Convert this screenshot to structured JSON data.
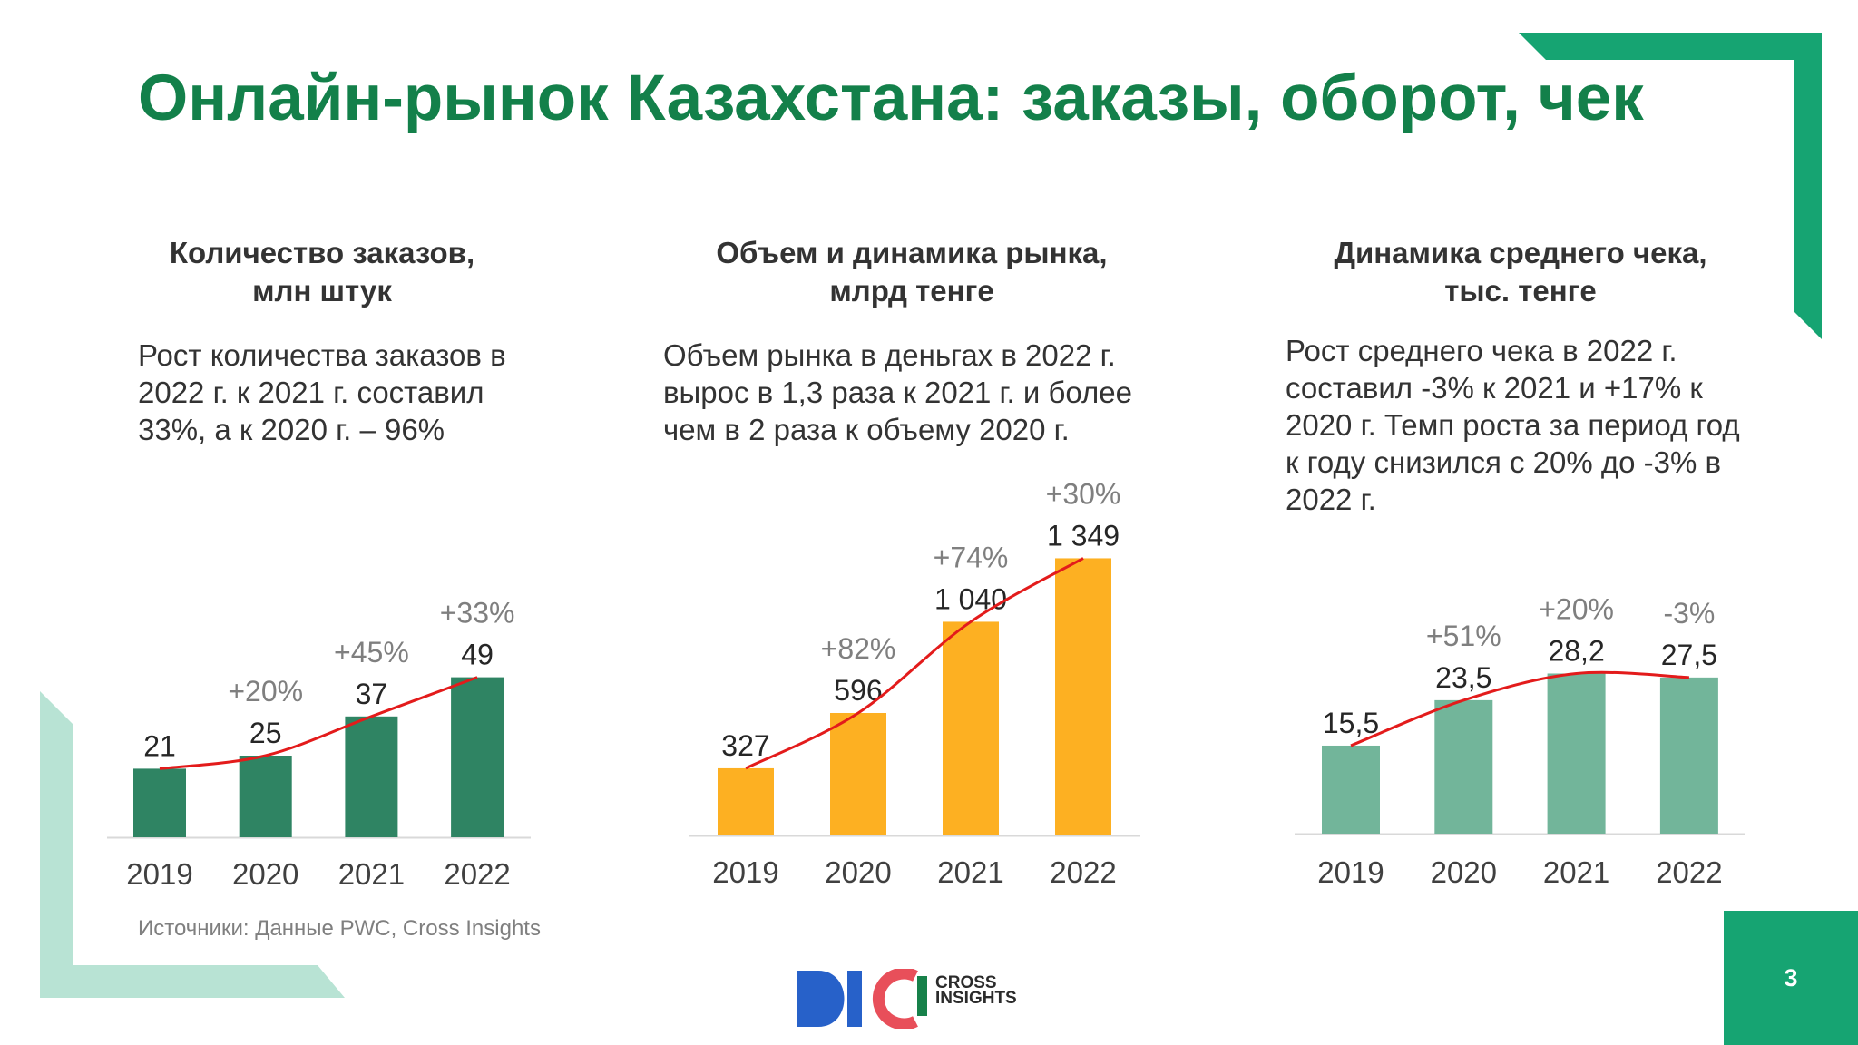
{
  "page": {
    "title": "Онлайн-рынок Казахстана: заказы, оборот, чек",
    "source": "Источники: Данные PWC, Cross Insights",
    "page_number": "3",
    "colors": {
      "title": "#13804a",
      "accent": "#16a472",
      "accent_light": "#b8e3d4",
      "trend_line": "#e31b1b"
    }
  },
  "sections": [
    {
      "title_lines": [
        "Количество заказов,",
        "млн штук"
      ],
      "desc_lines": [
        "Рост количества заказов в",
        "2022 г. к 2021 г. составил",
        "33%, а к 2020 г. – 96%"
      ]
    },
    {
      "title_lines": [
        "Объем и динамика рынка,",
        "млрд тенге"
      ],
      "desc_lines": [
        "Объем рынка в деньгах в 2022 г.",
        "вырос в 1,3 раза к 2021 г. и более",
        "чем в 2 раза к объему 2020 г."
      ]
    },
    {
      "title_lines": [
        "Динамика среднего чека,",
        "тыс. тенге"
      ],
      "desc_lines": [
        "Рост среднего чека в 2022 г.",
        "составил -3% к 2021 и +17% к",
        "2020 г. Темп роста за период год",
        "к году снизился с 20% до -3% в",
        "2022 г."
      ]
    }
  ],
  "chart_data": [
    {
      "type": "bar",
      "title": "Количество заказов, млн штук",
      "categories": [
        "2019",
        "2020",
        "2021",
        "2022"
      ],
      "values": [
        21,
        25,
        37,
        49
      ],
      "value_labels": [
        "21",
        "25",
        "37",
        "49"
      ],
      "growth_labels": [
        "",
        "+20%",
        "+45%",
        "+33%"
      ],
      "color": "#2f8463",
      "trend_line": true
    },
    {
      "type": "bar",
      "title": "Объем и динамика рынка, млрд тенге",
      "categories": [
        "2019",
        "2020",
        "2021",
        "2022"
      ],
      "values": [
        327,
        596,
        1040,
        1349
      ],
      "value_labels": [
        "327",
        "596",
        "1 040",
        "1 349"
      ],
      "growth_labels": [
        "",
        "+82%",
        "+74%",
        "+30%"
      ],
      "color": "#fdb022",
      "trend_line": true
    },
    {
      "type": "bar",
      "title": "Динамика среднего чека, тыс. тенге",
      "categories": [
        "2019",
        "2020",
        "2021",
        "2022"
      ],
      "values": [
        15.5,
        23.5,
        28.2,
        27.5
      ],
      "value_labels": [
        "15,5",
        "23,5",
        "28,2",
        "27,5"
      ],
      "growth_labels": [
        "",
        "+51%",
        "+20%",
        "-3%"
      ],
      "color": "#72b59a",
      "trend_line": true
    }
  ],
  "logo": {
    "brand_text_lines": [
      "CROSS",
      "INSIGHTS"
    ],
    "colors": {
      "d": "#2761c9",
      "i": "#2761c9",
      "c": "#e84f5a",
      "bar": "#17814a"
    }
  }
}
